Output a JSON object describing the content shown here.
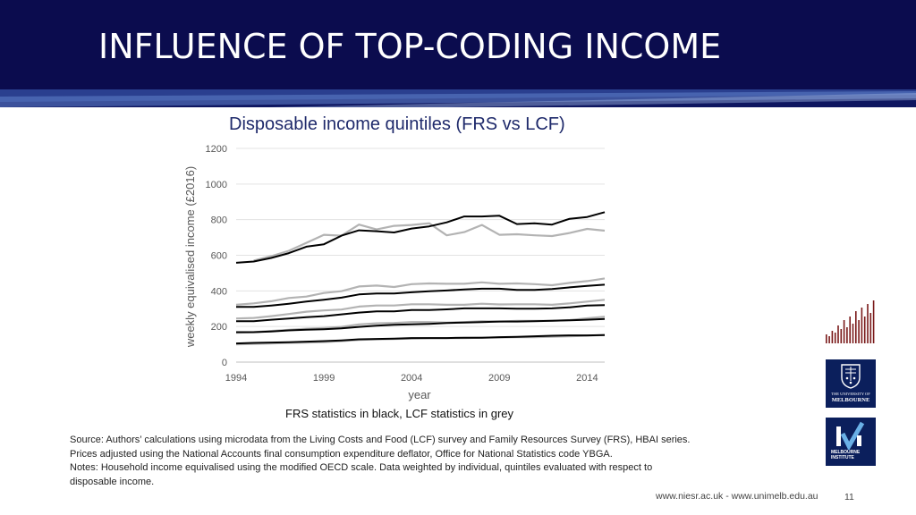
{
  "page": {
    "title": "INFLUENCE OF TOP-CODING INCOME",
    "chart_heading": "Disposable income quintiles (FRS vs LCF)",
    "notes": [
      "Source:  Authors’ calculations using microdata from the Living Costs and Food (LCF) survey and Family Resources Survey (FRS), HBAI series.",
      "Prices adjusted using the National Accounts final consumption expenditure deflator, Office for National Statistics code YBGA.",
      "Notes: Household income equivalised using the modified OECD scale. Data weighted by individual, quintiles evaluated with respect to",
      "disposable income."
    ],
    "footer": {
      "sites": "www.niesr.ac.uk   -   www.unimelb.edu.au",
      "page_number": "11"
    },
    "logos": {
      "um_line1": "THE UNIVERSITY OF",
      "um_line2": "MELBOURNE",
      "mi_line1": "MELBOURNE",
      "mi_line2": "INSTITUTE"
    },
    "colors": {
      "header_bg": "#0b0c4e",
      "frs_line": "#000000",
      "lcf_line": "#b3b3b3",
      "logo_navy": "#0b1f5c",
      "niesr_red": "#7a1a1a"
    }
  },
  "chart_data": {
    "type": "line",
    "title": "",
    "xlabel": "year",
    "ylabel": "weekly equivalised income (£2016)",
    "caption": "FRS statistics in black, LCF statistics in grey",
    "xlim": [
      1994,
      2015
    ],
    "ylim": [
      0,
      1200
    ],
    "xticks": [
      1994,
      1999,
      2004,
      2009,
      2014
    ],
    "yticks": [
      0,
      200,
      400,
      600,
      800,
      1000,
      1200
    ],
    "grid": "horizontal",
    "x": [
      1994,
      1995,
      1996,
      1997,
      1998,
      1999,
      2000,
      2001,
      2002,
      2003,
      2004,
      2005,
      2006,
      2007,
      2008,
      2009,
      2010,
      2011,
      2012,
      2013,
      2014,
      2015
    ],
    "series": [
      {
        "source": "LCF",
        "values": [
          null,
          570,
          595,
          625,
          670,
          715,
          710,
          772,
          745,
          765,
          770,
          780,
          712,
          730,
          770,
          715,
          718,
          712,
          708,
          725,
          748,
          738
        ]
      },
      {
        "source": "LCF",
        "values": [
          322,
          330,
          342,
          360,
          368,
          388,
          398,
          425,
          430,
          422,
          438,
          442,
          440,
          440,
          448,
          440,
          442,
          438,
          432,
          445,
          455,
          470
        ]
      },
      {
        "source": "LCF",
        "values": [
          245,
          248,
          258,
          270,
          283,
          290,
          295,
          312,
          318,
          318,
          325,
          325,
          322,
          322,
          328,
          324,
          325,
          325,
          322,
          330,
          340,
          350
        ]
      },
      {
        "source": "LCF",
        "values": [
          165,
          168,
          175,
          182,
          188,
          192,
          198,
          212,
          218,
          220,
          225,
          225,
          222,
          225,
          230,
          228,
          232,
          232,
          232,
          236,
          246,
          255
        ]
      },
      {
        "source": "LCF",
        "values": [
          100,
          102,
          105,
          108,
          110,
          112,
          118,
          125,
          128,
          130,
          132,
          135,
          135,
          135,
          137,
          138,
          140,
          140,
          142,
          145,
          148,
          152
        ]
      },
      {
        "source": "FRS",
        "values": [
          558,
          565,
          585,
          612,
          648,
          662,
          710,
          740,
          735,
          728,
          750,
          762,
          785,
          818,
          818,
          822,
          775,
          780,
          772,
          805,
          815,
          842
        ]
      },
      {
        "source": "FRS",
        "values": [
          310,
          310,
          318,
          328,
          340,
          350,
          362,
          380,
          385,
          385,
          392,
          398,
          402,
          408,
          412,
          412,
          405,
          405,
          410,
          420,
          428,
          435
        ]
      },
      {
        "source": "FRS",
        "values": [
          230,
          230,
          238,
          245,
          252,
          258,
          268,
          278,
          285,
          285,
          292,
          292,
          296,
          302,
          302,
          302,
          300,
          300,
          302,
          308,
          318,
          320
        ]
      },
      {
        "source": "FRS",
        "values": [
          168,
          168,
          172,
          178,
          182,
          185,
          190,
          198,
          205,
          210,
          212,
          215,
          220,
          222,
          225,
          228,
          228,
          230,
          232,
          235,
          238,
          242
        ]
      },
      {
        "source": "FRS",
        "values": [
          105,
          108,
          110,
          112,
          115,
          118,
          122,
          128,
          130,
          132,
          135,
          135,
          135,
          137,
          137,
          140,
          142,
          145,
          148,
          150,
          150,
          152
        ]
      }
    ]
  }
}
